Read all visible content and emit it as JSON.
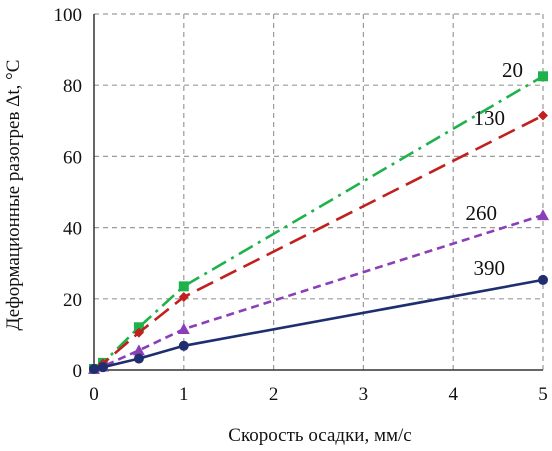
{
  "chart_data": {
    "type": "line",
    "xlabel": "Скорость осадки, мм/с",
    "ylabel": "Деформационные разогрев Δt, °C",
    "xlim": [
      0,
      5
    ],
    "ylim": [
      0,
      100
    ],
    "x_ticks": [
      "0",
      "1",
      "2",
      "3",
      "4",
      "5"
    ],
    "y_ticks": [
      "0",
      "20",
      "40",
      "60",
      "80",
      "100"
    ],
    "grid": true,
    "legend": "none; series labels printed beside line ends",
    "series": [
      {
        "name": "20",
        "color": "#1db34a",
        "line": "dash-dot",
        "marker": "square",
        "points": [
          [
            0,
            0.3
          ],
          [
            0.1,
            2.0
          ],
          [
            0.5,
            12.0
          ],
          [
            1,
            23.5
          ],
          [
            5,
            82.5
          ]
        ]
      },
      {
        "name": "130",
        "color": "#c0201e",
        "line": "long-dash",
        "marker": "diamond",
        "points": [
          [
            0,
            0.3
          ],
          [
            0.1,
            1.8
          ],
          [
            0.5,
            10.5
          ],
          [
            1,
            20.5
          ],
          [
            5,
            71.5
          ]
        ]
      },
      {
        "name": "260",
        "color": "#8a3fb8",
        "line": "short-dash",
        "marker": "triangle",
        "points": [
          [
            0,
            0.3
          ],
          [
            0.1,
            1.0
          ],
          [
            0.5,
            5.5
          ],
          [
            1,
            11.5
          ],
          [
            5,
            43.5
          ]
        ]
      },
      {
        "name": "390",
        "color": "#1f2e6e",
        "line": "solid",
        "marker": "circle",
        "points": [
          [
            0,
            0.3
          ],
          [
            0.1,
            0.8
          ],
          [
            0.5,
            3.2
          ],
          [
            1,
            6.8
          ],
          [
            5,
            25.3
          ]
        ]
      }
    ]
  }
}
